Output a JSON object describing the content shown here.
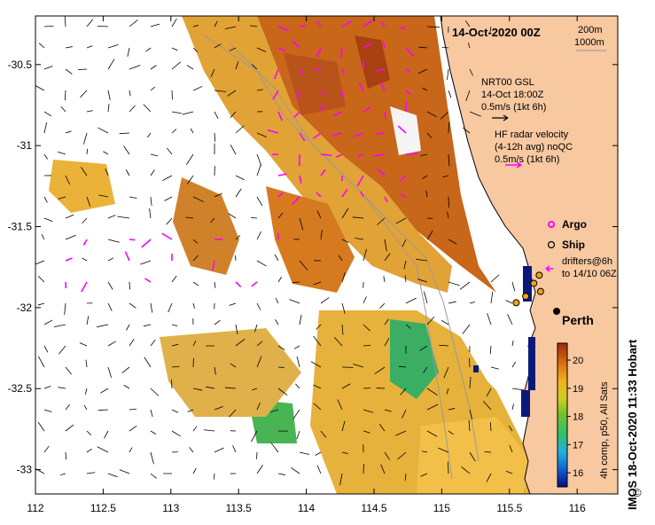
{
  "title": "14-Oct-2020 00Z",
  "depth_legend": {
    "line1": "200m",
    "line2": "1000m"
  },
  "gsl": {
    "line1": "NRT00 GSL",
    "line2": "14-Oct 18:00Z",
    "line3": "0.5m/s (1kt 6h)"
  },
  "hf": {
    "line1": "HF radar velocity",
    "line2": "(4-12h avg) noQC",
    "line3": "0.5m/s (1kt 6h)"
  },
  "legend": {
    "argo": "Argo",
    "ship": "Ship",
    "drifters1": "drifters@6h",
    "drifters2": "to 14/10 06Z"
  },
  "city": "Perth",
  "credit": "IMOS 18-Oct-2020 11:33 Hobart",
  "copyright": "©",
  "colorbar": {
    "caption": "4h comp, p50, All Sats",
    "ticks": [
      "20",
      "19",
      "18",
      "17",
      "16"
    ],
    "tick_values": [
      20,
      19,
      18,
      17,
      16
    ],
    "min": 15.5,
    "max": 20.6
  },
  "axes": {
    "y_ticks": [
      "-30.5",
      "-31",
      "-31.5",
      "-32",
      "-32.5",
      "-33"
    ],
    "y_values": [
      -30.5,
      -31,
      -31.5,
      -32,
      -32.5,
      -33
    ],
    "x_ticks": [
      "112",
      "112.5",
      "113",
      "113.5",
      "114",
      "114.5",
      "115",
      "115.5",
      "116"
    ],
    "x_values": [
      112,
      112.5,
      113,
      113.5,
      114,
      114.5,
      115,
      115.5,
      116
    ],
    "lon_range": [
      112,
      116.3
    ],
    "lat_range": [
      -33.15,
      -30.2
    ]
  },
  "colors": {
    "land": "#f8c8a0",
    "ocean": "#ffffff",
    "argo": "#ff00ff",
    "ship": "#000000",
    "coastline": "#000000",
    "bathy": "#999999",
    "sst_warm": "#c86414",
    "sst_mid": "#e8b030",
    "sst_cool": "#50c050"
  },
  "markers": {
    "perth": {
      "lon": 115.86,
      "lat": -31.95
    },
    "ships": [
      {
        "lon": 115.68,
        "lat": -31.85
      },
      {
        "lon": 115.72,
        "lat": -31.8
      },
      {
        "lon": 115.55,
        "lat": -31.97
      },
      {
        "lon": 115.62,
        "lat": -31.93
      },
      {
        "lon": 115.73,
        "lat": -31.9
      }
    ]
  }
}
